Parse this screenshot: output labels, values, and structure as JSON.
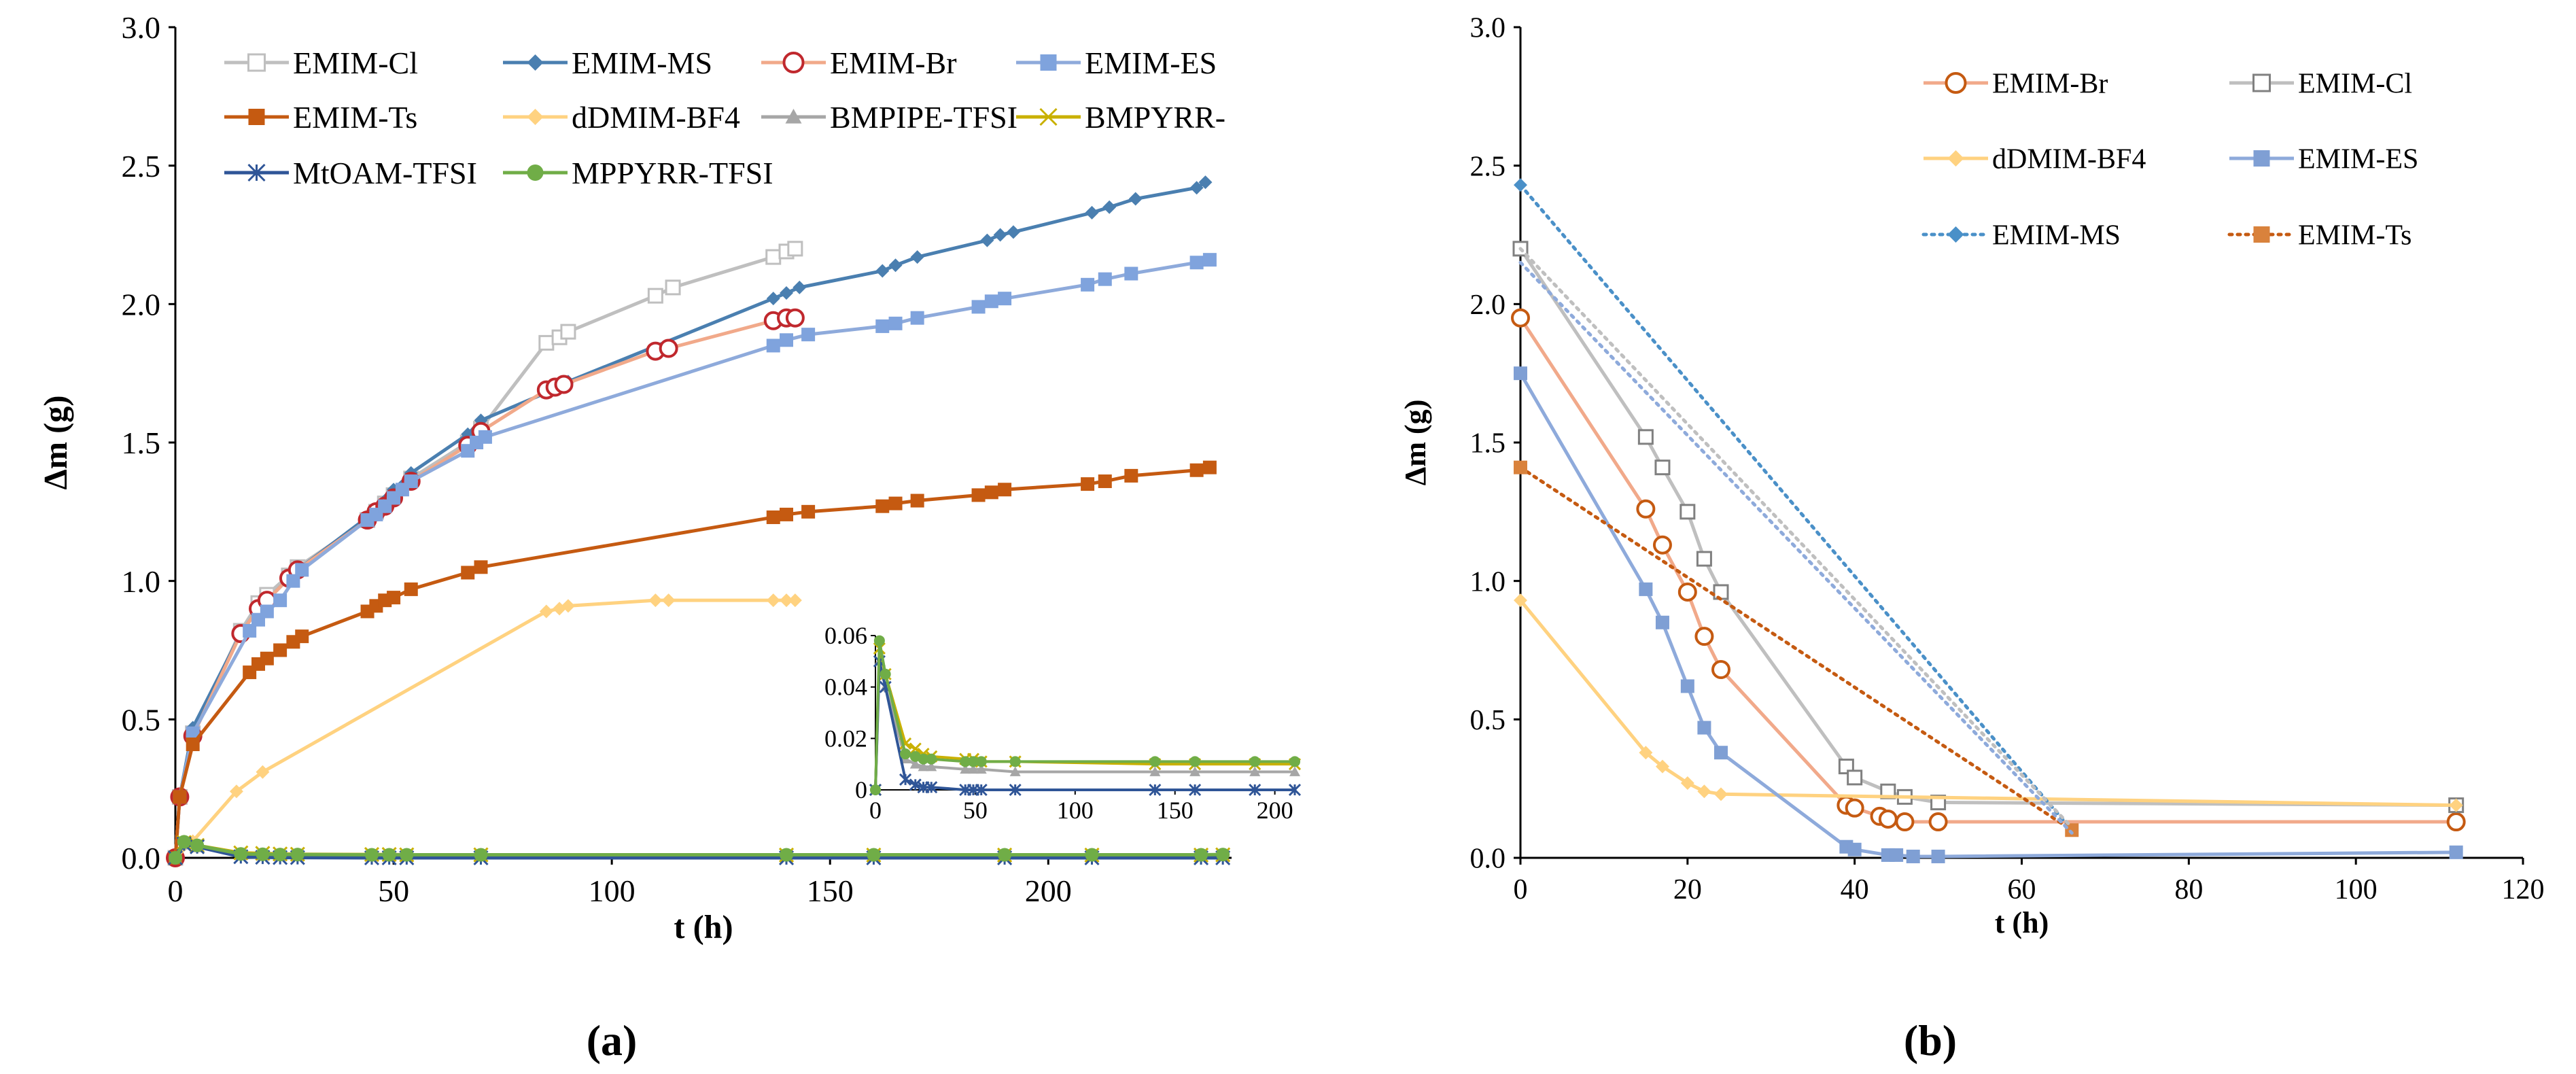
{
  "figure": {
    "panel_a_caption": "(a)",
    "panel_b_caption": "(b)"
  },
  "chart_data": [
    {
      "type": "line",
      "panel": "a",
      "title": "",
      "xlabel": "t (h)",
      "ylabel": "Δm (g)",
      "xlim": [
        0,
        242
      ],
      "ylim": [
        0,
        3.0
      ],
      "xticks": [
        "0",
        "50",
        "100",
        "150",
        "200"
      ],
      "yticks": [
        "0.0",
        "0.5",
        "1.0",
        "1.5",
        "2.0",
        "2.5",
        "3.0"
      ],
      "legend_position": "top-left",
      "series": [
        {
          "name": "EMIM-Cl",
          "label": "EMIM-Cl",
          "color": "#bfbfbf",
          "marker": "open-square",
          "x": [
            0,
            1,
            4,
            15,
            19,
            21,
            26,
            28,
            44,
            46,
            48,
            50,
            54,
            67,
            70,
            85,
            88,
            90,
            110,
            114,
            137,
            140,
            142
          ],
          "y": [
            0,
            0.22,
            0.45,
            0.82,
            0.92,
            0.95,
            1.02,
            1.05,
            1.22,
            1.25,
            1.28,
            1.31,
            1.37,
            1.5,
            1.55,
            1.86,
            1.88,
            1.9,
            2.03,
            2.06,
            2.17,
            2.19,
            2.2
          ]
        },
        {
          "name": "EMIM-MS",
          "label": "EMIM-MS",
          "color": "#4a7fb0",
          "marker": "diamond",
          "x": [
            0,
            1,
            4,
            15,
            19,
            21,
            26,
            28,
            44,
            46,
            48,
            50,
            54,
            67,
            70,
            88,
            90,
            137,
            140,
            143,
            162,
            165,
            170,
            186,
            189,
            192,
            210,
            214,
            220,
            234,
            236
          ],
          "y": [
            0,
            0.22,
            0.47,
            0.81,
            0.9,
            0.93,
            1.01,
            1.04,
            1.23,
            1.26,
            1.29,
            1.33,
            1.39,
            1.53,
            1.58,
            1.7,
            1.72,
            2.02,
            2.04,
            2.06,
            2.12,
            2.14,
            2.17,
            2.23,
            2.25,
            2.26,
            2.33,
            2.35,
            2.38,
            2.42,
            2.44
          ]
        },
        {
          "name": "EMIM-Br",
          "label": "EMIM-Br",
          "color": "#f1a98a",
          "marker": "open-circle",
          "marker_color": "#c0282d",
          "x": [
            0,
            1,
            4,
            15,
            19,
            21,
            26,
            28,
            44,
            46,
            48,
            50,
            54,
            67,
            70,
            85,
            87,
            89,
            110,
            113,
            137,
            140,
            142
          ],
          "y": [
            0,
            0.22,
            0.44,
            0.81,
            0.9,
            0.93,
            1.01,
            1.04,
            1.22,
            1.25,
            1.27,
            1.3,
            1.36,
            1.49,
            1.54,
            1.69,
            1.7,
            1.71,
            1.83,
            1.84,
            1.94,
            1.95,
            1.95
          ]
        },
        {
          "name": "EMIM-ES",
          "label": "EMIM-ES",
          "color": "#8eaadb",
          "marker": "square",
          "marker_color": "#7fa3dd",
          "x": [
            0,
            1,
            4,
            17,
            19,
            21,
            24,
            27,
            29,
            44,
            46,
            48,
            50,
            52,
            54,
            67,
            69,
            71,
            137,
            140,
            145,
            162,
            165,
            170,
            184,
            187,
            190,
            209,
            213,
            219,
            234,
            237
          ],
          "y": [
            0,
            0.22,
            0.45,
            0.82,
            0.86,
            0.89,
            0.93,
            1.0,
            1.04,
            1.22,
            1.24,
            1.27,
            1.3,
            1.33,
            1.36,
            1.47,
            1.5,
            1.52,
            1.85,
            1.87,
            1.89,
            1.92,
            1.93,
            1.95,
            1.99,
            2.01,
            2.02,
            2.07,
            2.09,
            2.11,
            2.15,
            2.16
          ]
        },
        {
          "name": "EMIM-Ts",
          "label": "EMIM-Ts",
          "color": "#c55a11",
          "marker": "square",
          "marker_color": "#c55a11",
          "x": [
            0,
            1,
            4,
            17,
            19,
            21,
            24,
            27,
            29,
            44,
            46,
            48,
            50,
            54,
            67,
            70,
            137,
            140,
            145,
            162,
            165,
            170,
            184,
            187,
            190,
            209,
            213,
            219,
            234,
            237
          ],
          "y": [
            0,
            0.22,
            0.41,
            0.67,
            0.7,
            0.72,
            0.75,
            0.78,
            0.8,
            0.89,
            0.91,
            0.93,
            0.94,
            0.97,
            1.03,
            1.05,
            1.23,
            1.24,
            1.25,
            1.27,
            1.28,
            1.29,
            1.31,
            1.32,
            1.33,
            1.35,
            1.36,
            1.38,
            1.4,
            1.41
          ],
          "style": "solid"
        },
        {
          "name": "dDMIM-BF4",
          "label": "dDMIM-BF4",
          "color": "#ffd280",
          "marker": "diamond",
          "x": [
            0,
            4,
            14,
            20,
            85,
            88,
            90,
            110,
            113,
            137,
            140,
            142
          ],
          "y": [
            0,
            0.06,
            0.24,
            0.31,
            0.89,
            0.9,
            0.91,
            0.93,
            0.93,
            0.93,
            0.93,
            0.93
          ]
        },
        {
          "name": "BMPIPE-TFSI",
          "label": "BMPIPE-TFSI",
          "color": "#a6a6a6",
          "marker": "triangle",
          "x": [
            0,
            2,
            5,
            15,
            20,
            24,
            28,
            45,
            49,
            53,
            70,
            140,
            160,
            190,
            210,
            235,
            240
          ],
          "y": [
            0,
            0.05,
            0.04,
            0.012,
            0.01,
            0.009,
            0.009,
            0.008,
            0.008,
            0.008,
            0.007,
            0.007,
            0.007,
            0.007,
            0.007,
            0.007,
            0.008
          ]
        },
        {
          "name": "BMPYRR-TFSI",
          "label": "BMPYRR-",
          "color": "#c9b000",
          "marker": "x",
          "x": [
            0,
            2,
            5,
            15,
            20,
            24,
            28,
            45,
            49,
            53,
            70,
            140,
            160,
            190,
            210,
            235,
            240
          ],
          "y": [
            0,
            0.055,
            0.045,
            0.018,
            0.016,
            0.014,
            0.013,
            0.012,
            0.012,
            0.011,
            0.011,
            0.01,
            0.01,
            0.01,
            0.01,
            0.01,
            0.011
          ]
        },
        {
          "name": "MtOAM-TFSI",
          "label": "MtOAM-TFSI",
          "color": "#2f5597",
          "marker": "star",
          "x": [
            0,
            2,
            5,
            15,
            20,
            24,
            28,
            45,
            49,
            53,
            70,
            140,
            160,
            190,
            210,
            235,
            240
          ],
          "y": [
            0,
            0.05,
            0.04,
            0.004,
            0.002,
            0.001,
            0.001,
            0,
            0,
            0,
            0,
            0,
            0,
            0,
            0,
            0,
            0
          ]
        },
        {
          "name": "MPPYRR-TFSI",
          "label": "MPPYRR-TFSI",
          "color": "#70ad47",
          "marker": "circle",
          "x": [
            0,
            2,
            5,
            15,
            20,
            24,
            28,
            45,
            49,
            53,
            70,
            140,
            160,
            190,
            210,
            235,
            240
          ],
          "y": [
            0,
            0.058,
            0.045,
            0.014,
            0.013,
            0.012,
            0.012,
            0.011,
            0.011,
            0.011,
            0.011,
            0.011,
            0.011,
            0.011,
            0.011,
            0.011,
            0.012
          ]
        }
      ],
      "inset": {
        "xlim": [
          0,
          210
        ],
        "ylim": [
          0,
          0.06
        ],
        "xticks": [
          "0",
          "50",
          "100",
          "150",
          "200"
        ],
        "yticks": [
          "0",
          "0.02",
          "0.04",
          "0.06"
        ],
        "series_names": [
          "BMPIPE-TFSI",
          "BMPYRR-TFSI",
          "MtOAM-TFSI",
          "MPPYRR-TFSI"
        ]
      }
    },
    {
      "type": "line",
      "panel": "b",
      "title": "",
      "xlabel": "t (h)",
      "ylabel": "Δm (g)",
      "xlim": [
        0,
        120
      ],
      "ylim": [
        0,
        3.0
      ],
      "xticks": [
        "0",
        "20",
        "40",
        "60",
        "80",
        "100",
        "120"
      ],
      "yticks": [
        "0.0",
        "0.5",
        "1.0",
        "1.5",
        "2.0",
        "2.5",
        "3.0"
      ],
      "legend_position": "top-right",
      "series": [
        {
          "name": "EMIM-Br",
          "label": "EMIM-Br",
          "color": "#f1a98a",
          "marker": "open-circle",
          "marker_color": "#c55a11",
          "style": "solid",
          "x": [
            0,
            15,
            17,
            20,
            22,
            24,
            39,
            40,
            43,
            44,
            46,
            50,
            112
          ],
          "y": [
            1.95,
            1.26,
            1.13,
            0.96,
            0.8,
            0.68,
            0.19,
            0.18,
            0.15,
            0.14,
            0.13,
            0.13,
            0.13
          ]
        },
        {
          "name": "EMIM-Cl",
          "label": "EMIM-Cl",
          "color": "#bfbfbf",
          "marker": "open-square",
          "marker_color": "#808080",
          "style": "solid",
          "x": [
            0,
            15,
            17,
            20,
            22,
            24,
            39,
            40,
            44,
            46,
            50,
            112
          ],
          "y": [
            2.2,
            1.52,
            1.41,
            1.25,
            1.08,
            0.96,
            0.33,
            0.29,
            0.24,
            0.22,
            0.2,
            0.19
          ]
        },
        {
          "name": "dDMIM-BF4",
          "label": "dDMIM-BF4",
          "color": "#ffd280",
          "marker": "diamond",
          "style": "solid",
          "x": [
            0,
            15,
            17,
            20,
            22,
            24,
            112
          ],
          "y": [
            0.93,
            0.38,
            0.33,
            0.27,
            0.24,
            0.23,
            0.19
          ]
        },
        {
          "name": "EMIM-ES",
          "label": "EMIM-ES",
          "color": "#8eaadb",
          "marker": "square",
          "marker_color": "#7f9fd4",
          "style": "solid",
          "x": [
            0,
            15,
            17,
            20,
            22,
            24,
            39,
            40,
            44,
            45,
            47,
            50,
            112
          ],
          "y": [
            1.75,
            0.97,
            0.85,
            0.62,
            0.47,
            0.38,
            0.04,
            0.03,
            0.01,
            0.01,
            0.005,
            0.005,
            0.02
          ]
        },
        {
          "name": "EMIM-MS",
          "label": "EMIM-MS",
          "color": "#4a90c8",
          "marker": "diamond",
          "style": "dotted",
          "x": [
            0,
            66
          ],
          "y": [
            2.43,
            0.1
          ]
        },
        {
          "name": "EMIM-Ts",
          "label": "EMIM-Ts",
          "color": "#c55a11",
          "marker": "square",
          "marker_color": "#d9823c",
          "style": "dotted",
          "x": [
            0,
            66
          ],
          "y": [
            1.41,
            0.1
          ]
        },
        {
          "name": "EMIM-ES-dotted",
          "label": "",
          "color": "#8eaadb",
          "marker": "none",
          "style": "dotted",
          "x": [
            0,
            66
          ],
          "y": [
            2.15,
            0.09
          ]
        },
        {
          "name": "EMIM-Cl-dotted",
          "label": "",
          "color": "#bfbfbf",
          "marker": "none",
          "style": "dotted",
          "x": [
            0,
            66
          ],
          "y": [
            2.2,
            0.11
          ]
        }
      ]
    }
  ]
}
